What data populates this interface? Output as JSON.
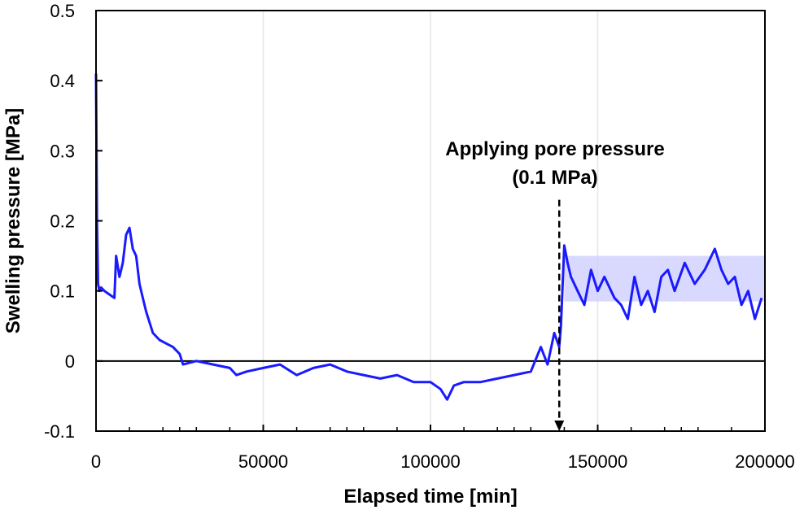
{
  "chart_data": {
    "type": "line",
    "xlabel": "Elapsed time [min]",
    "ylabel": "Swelling pressure [MPa]",
    "xlim": [
      0,
      200000
    ],
    "ylim": [
      -0.1,
      0.5
    ],
    "x_ticks": [
      0,
      50000,
      100000,
      150000,
      200000
    ],
    "x_tick_labels": [
      "0",
      "50000",
      "100000",
      "150000",
      "200000"
    ],
    "y_ticks": [
      -0.1,
      0,
      0.1,
      0.2,
      0.3,
      0.4,
      0.5
    ],
    "y_tick_labels": [
      "-0.1",
      "0",
      "0.1",
      "0.2",
      "0.3",
      "0.4",
      "0.5"
    ],
    "grid": "vertical",
    "series_color": "#1a1aff",
    "band_color": "#ccccff",
    "zero_line": 0,
    "band": {
      "x_start": 140000,
      "x_end": 200000,
      "y_low": 0.085,
      "y_high": 0.15
    },
    "annotation": {
      "lines": [
        "Applying pore pressure",
        "(0.1 MPa)"
      ],
      "arrow_x": 138500,
      "arrow_from_y": 0.23,
      "arrow_to_y": -0.1
    },
    "series": [
      {
        "x": [
          0,
          300,
          600,
          1000,
          1500,
          2500,
          4000,
          5500,
          6000,
          7000,
          8000,
          9000,
          10000,
          11000,
          12000,
          13000,
          14000,
          15000,
          16000,
          17000,
          19000,
          21000,
          23000,
          25000,
          26000,
          30000,
          35000,
          40000,
          42000,
          45000,
          50000,
          55000,
          60000,
          65000,
          70000,
          75000,
          80000,
          85000,
          90000,
          95000,
          100000,
          103000,
          105000,
          107000,
          110000,
          115000,
          120000,
          125000,
          130000,
          133000,
          135000,
          137000,
          138500,
          139000,
          140000,
          141000,
          142000,
          144000,
          146000,
          148000,
          150000,
          152000,
          155000,
          157000,
          159000,
          161000,
          163000,
          165000,
          167000,
          169000,
          171000,
          173000,
          176000,
          179000,
          182000,
          185000,
          187000,
          189000,
          191000,
          193000,
          195000,
          197000,
          199000
        ],
        "y": [
          0.41,
          0.2,
          0.11,
          0.1,
          0.105,
          0.1,
          0.095,
          0.09,
          0.15,
          0.12,
          0.14,
          0.18,
          0.19,
          0.16,
          0.15,
          0.11,
          0.09,
          0.07,
          0.055,
          0.04,
          0.03,
          0.025,
          0.02,
          0.01,
          -0.005,
          0.0,
          -0.005,
          -0.01,
          -0.02,
          -0.015,
          -0.01,
          -0.005,
          -0.02,
          -0.01,
          -0.005,
          -0.015,
          -0.02,
          -0.025,
          -0.02,
          -0.03,
          -0.03,
          -0.04,
          -0.055,
          -0.035,
          -0.03,
          -0.03,
          -0.025,
          -0.02,
          -0.015,
          0.02,
          -0.005,
          0.04,
          0.02,
          0.05,
          0.165,
          0.14,
          0.12,
          0.1,
          0.08,
          0.13,
          0.1,
          0.12,
          0.09,
          0.08,
          0.06,
          0.12,
          0.08,
          0.1,
          0.07,
          0.12,
          0.13,
          0.1,
          0.14,
          0.11,
          0.13,
          0.16,
          0.13,
          0.11,
          0.12,
          0.08,
          0.1,
          0.06,
          0.09
        ]
      }
    ]
  }
}
